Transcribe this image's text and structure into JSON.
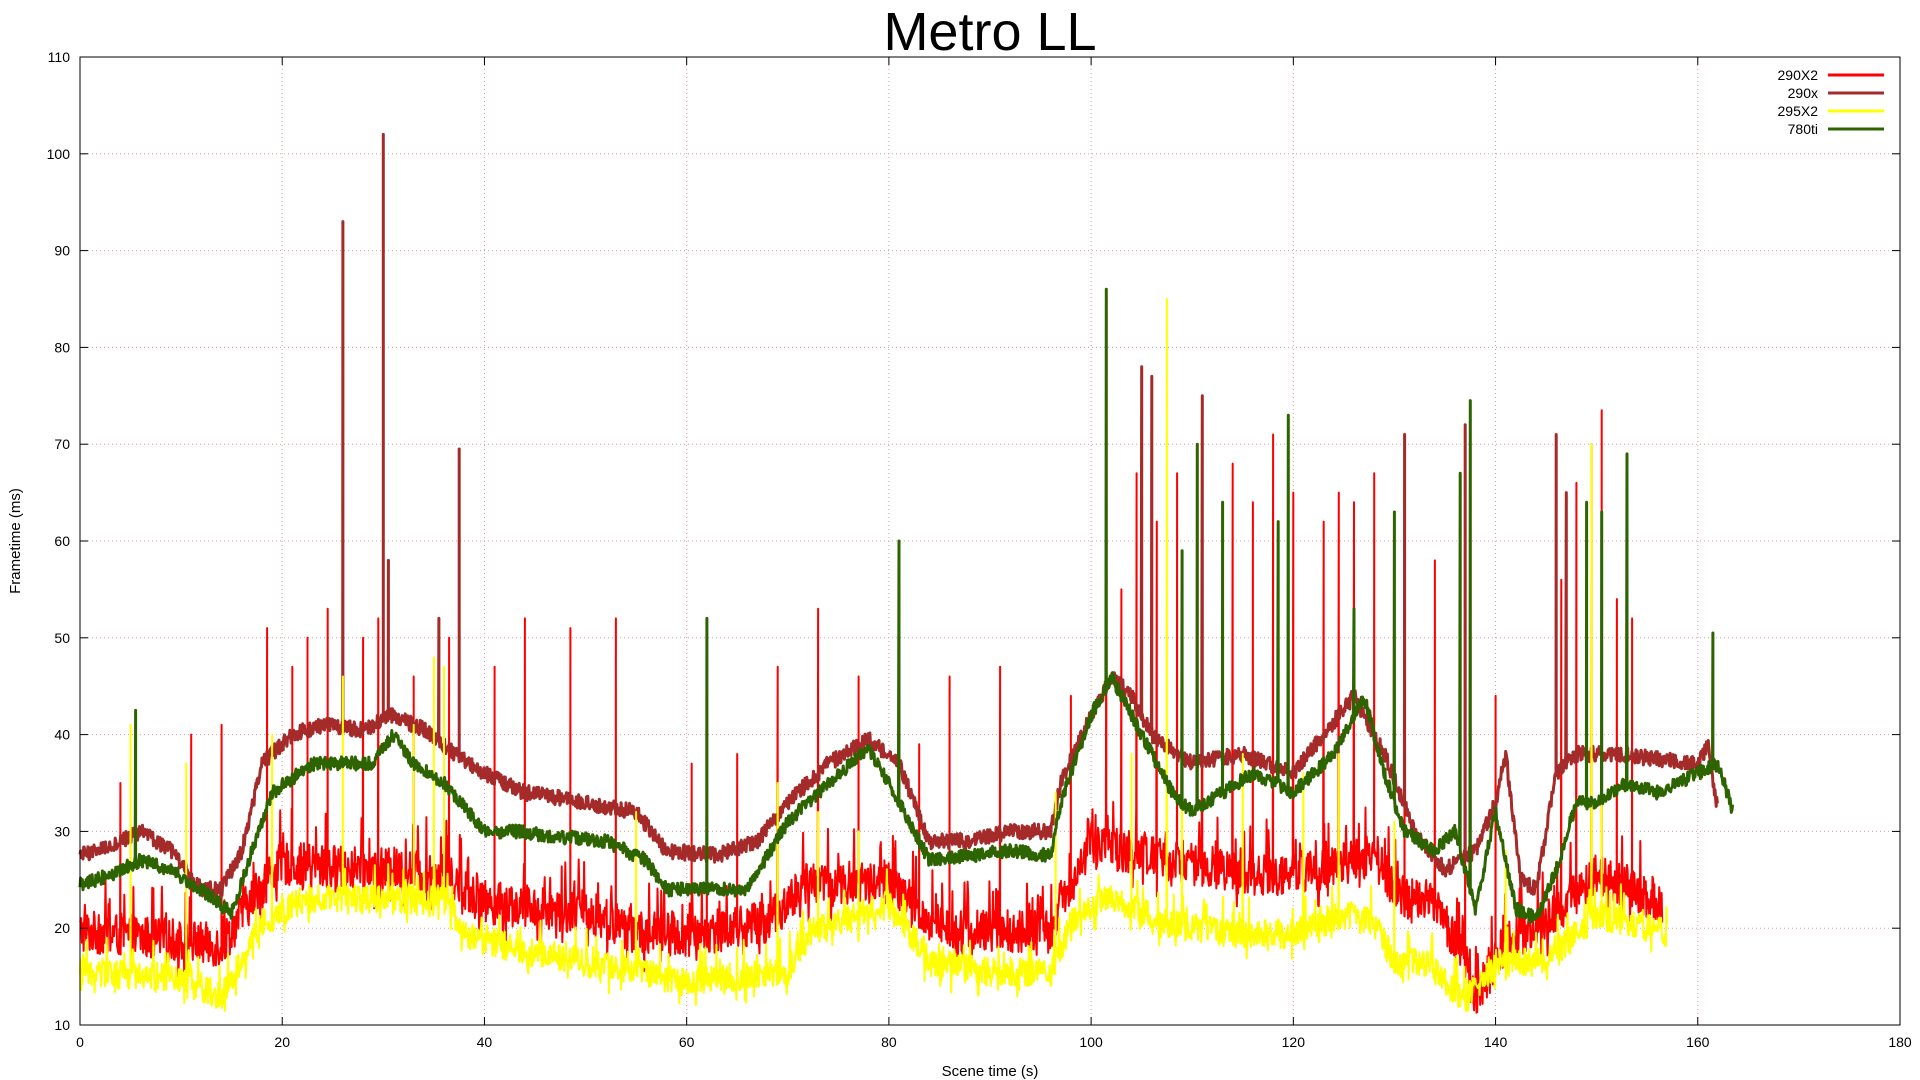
{
  "chart_data": {
    "type": "line",
    "title": "Metro LL",
    "xlabel": "Scene time (s)",
    "ylabel": "Frametime (ms)",
    "xlim": [
      0,
      180
    ],
    "ylim": [
      10,
      110
    ],
    "xticks": [
      0,
      20,
      40,
      60,
      80,
      100,
      120,
      140,
      160,
      180
    ],
    "yticks": [
      10,
      20,
      30,
      40,
      50,
      60,
      70,
      80,
      90,
      100,
      110
    ],
    "grid": true,
    "legend_position": "top-right",
    "series": [
      {
        "name": "290X2",
        "color": "#ff0000",
        "x_range": [
          0,
          156.5
        ],
        "baseline": [
          [
            0,
            19
          ],
          [
            10,
            18
          ],
          [
            14,
            17.5
          ],
          [
            18,
            24
          ],
          [
            20,
            26
          ],
          [
            36,
            25
          ],
          [
            40,
            22
          ],
          [
            50,
            21
          ],
          [
            55,
            19
          ],
          [
            60,
            18.5
          ],
          [
            68,
            20
          ],
          [
            72,
            24
          ],
          [
            80,
            24
          ],
          [
            84,
            20
          ],
          [
            88,
            19
          ],
          [
            96,
            19
          ],
          [
            97,
            22
          ],
          [
            100,
            28
          ],
          [
            105,
            27
          ],
          [
            110,
            26
          ],
          [
            114,
            25
          ],
          [
            120,
            25
          ],
          [
            125,
            26
          ],
          [
            128,
            27
          ],
          [
            130,
            23
          ],
          [
            134,
            22
          ],
          [
            137,
            16
          ],
          [
            138,
            12
          ],
          [
            141,
            18
          ],
          [
            145,
            20
          ],
          [
            150,
            25
          ],
          [
            156.5,
            22
          ]
        ],
        "noise": 4.5,
        "spikes": [
          [
            4,
            35
          ],
          [
            11,
            40
          ],
          [
            14,
            41
          ],
          [
            18.5,
            51
          ],
          [
            21,
            47
          ],
          [
            22.5,
            50
          ],
          [
            24.5,
            53
          ],
          [
            28,
            50
          ],
          [
            29.5,
            52
          ],
          [
            33,
            46
          ],
          [
            36.5,
            50
          ],
          [
            41,
            47
          ],
          [
            44,
            52
          ],
          [
            48.5,
            51
          ],
          [
            53,
            52
          ],
          [
            60.5,
            37
          ],
          [
            62,
            40
          ],
          [
            65,
            38
          ],
          [
            69,
            47
          ],
          [
            73,
            53
          ],
          [
            77,
            46
          ],
          [
            83,
            39
          ],
          [
            86,
            46
          ],
          [
            91,
            47
          ],
          [
            98,
            44
          ],
          [
            101.5,
            61
          ],
          [
            103,
            55
          ],
          [
            104.5,
            67
          ],
          [
            106.5,
            62
          ],
          [
            108.5,
            67
          ],
          [
            111,
            65
          ],
          [
            114,
            68
          ],
          [
            116,
            64
          ],
          [
            118,
            71
          ],
          [
            120,
            65
          ],
          [
            123,
            62
          ],
          [
            124.5,
            65
          ],
          [
            126,
            64
          ],
          [
            128,
            67
          ],
          [
            131,
            63
          ],
          [
            134,
            58
          ],
          [
            137,
            60
          ],
          [
            140,
            44
          ],
          [
            146.5,
            56
          ],
          [
            148,
            66
          ],
          [
            149.5,
            70
          ],
          [
            150.5,
            73.5
          ],
          [
            152,
            54
          ],
          [
            153.5,
            52
          ]
        ]
      },
      {
        "name": "290x",
        "color": "#a52a2a",
        "x_range": [
          0,
          162
        ],
        "baseline": [
          [
            0,
            27.5
          ],
          [
            3,
            28.5
          ],
          [
            6,
            30
          ],
          [
            9,
            28
          ],
          [
            12,
            24
          ],
          [
            14,
            24
          ],
          [
            16,
            28
          ],
          [
            18,
            37
          ],
          [
            21,
            40
          ],
          [
            24,
            41
          ],
          [
            28,
            40.5
          ],
          [
            31,
            42
          ],
          [
            34,
            40.5
          ],
          [
            37,
            38
          ],
          [
            40,
            36
          ],
          [
            44,
            34
          ],
          [
            50,
            33
          ],
          [
            55,
            32
          ],
          [
            58,
            28
          ],
          [
            63,
            27.5
          ],
          [
            67,
            29
          ],
          [
            70,
            33
          ],
          [
            74,
            37
          ],
          [
            78,
            39.5
          ],
          [
            81,
            37
          ],
          [
            84,
            29
          ],
          [
            88,
            29
          ],
          [
            92,
            30
          ],
          [
            96,
            30
          ],
          [
            97,
            35
          ],
          [
            100,
            42
          ],
          [
            102,
            46
          ],
          [
            104,
            44
          ],
          [
            106,
            40
          ],
          [
            110,
            37
          ],
          [
            115,
            38
          ],
          [
            120,
            36
          ],
          [
            123,
            40
          ],
          [
            126,
            44
          ],
          [
            129,
            38
          ],
          [
            132,
            30
          ],
          [
            135,
            26
          ],
          [
            138,
            28
          ],
          [
            140,
            33
          ],
          [
            141,
            38
          ],
          [
            142.5,
            25
          ],
          [
            144,
            24
          ],
          [
            146,
            36
          ],
          [
            148,
            38
          ],
          [
            152,
            38
          ],
          [
            156,
            37.5
          ],
          [
            160,
            37
          ],
          [
            161,
            39
          ],
          [
            162,
            32
          ]
        ],
        "noise": 0.8,
        "spikes": [
          [
            26,
            93
          ],
          [
            30,
            102
          ],
          [
            30.5,
            58
          ],
          [
            37.5,
            69.5
          ],
          [
            35.5,
            52
          ],
          [
            105,
            78
          ],
          [
            106,
            77
          ],
          [
            111,
            75
          ],
          [
            131,
            71
          ],
          [
            137,
            72
          ],
          [
            146,
            71
          ],
          [
            147,
            65
          ]
        ]
      },
      {
        "name": "295X2",
        "color": "#ffff00",
        "x_range": [
          0,
          157
        ],
        "baseline": [
          [
            0,
            15
          ],
          [
            10,
            14.5
          ],
          [
            14,
            12.5
          ],
          [
            18,
            20
          ],
          [
            22,
            22.5
          ],
          [
            36,
            22.5
          ],
          [
            38,
            19
          ],
          [
            45,
            17
          ],
          [
            55,
            15
          ],
          [
            60,
            14
          ],
          [
            70,
            15
          ],
          [
            72,
            19
          ],
          [
            80,
            22
          ],
          [
            84,
            16
          ],
          [
            90,
            15
          ],
          [
            96,
            15
          ],
          [
            98,
            20
          ],
          [
            102,
            23
          ],
          [
            107,
            20
          ],
          [
            114,
            19
          ],
          [
            120,
            19
          ],
          [
            125,
            21
          ],
          [
            128,
            20
          ],
          [
            130,
            16
          ],
          [
            133,
            16
          ],
          [
            137,
            12
          ],
          [
            140,
            16
          ],
          [
            145,
            16
          ],
          [
            150,
            21
          ],
          [
            157,
            19
          ]
        ],
        "noise": 3.0,
        "spikes": [
          [
            5,
            41
          ],
          [
            10.5,
            37
          ],
          [
            19,
            40
          ],
          [
            26,
            46
          ],
          [
            33,
            41
          ],
          [
            35,
            48
          ],
          [
            36,
            47
          ],
          [
            55,
            32
          ],
          [
            69,
            35
          ],
          [
            73,
            32
          ],
          [
            77,
            30
          ],
          [
            96.5,
            34
          ],
          [
            104,
            38
          ],
          [
            107.5,
            85
          ],
          [
            109,
            53
          ],
          [
            115,
            38
          ],
          [
            121,
            36
          ],
          [
            124.5,
            38
          ],
          [
            130,
            31
          ],
          [
            141,
            28
          ],
          [
            149.5,
            70
          ],
          [
            150.5,
            55
          ]
        ]
      },
      {
        "name": "780ti",
        "color": "#2e6400",
        "x_range": [
          0,
          163.5
        ],
        "baseline": [
          [
            0,
            24.5
          ],
          [
            3,
            25.5
          ],
          [
            6,
            27
          ],
          [
            9,
            26
          ],
          [
            12,
            24
          ],
          [
            15,
            21.5
          ],
          [
            17,
            28
          ],
          [
            19,
            34
          ],
          [
            23,
            37
          ],
          [
            26,
            37
          ],
          [
            29,
            37
          ],
          [
            31,
            40
          ],
          [
            33,
            37
          ],
          [
            36,
            35
          ],
          [
            40,
            30
          ],
          [
            43,
            30
          ],
          [
            47,
            29.5
          ],
          [
            52,
            29
          ],
          [
            56,
            27
          ],
          [
            58,
            24
          ],
          [
            62,
            24
          ],
          [
            66,
            24
          ],
          [
            70,
            31
          ],
          [
            74,
            35
          ],
          [
            78,
            38.5
          ],
          [
            80,
            35
          ],
          [
            84,
            27
          ],
          [
            88,
            27.5
          ],
          [
            92,
            28
          ],
          [
            96,
            27.5
          ],
          [
            97,
            33
          ],
          [
            100,
            42
          ],
          [
            102,
            46
          ],
          [
            105,
            40
          ],
          [
            108,
            34
          ],
          [
            110,
            32
          ],
          [
            113,
            34
          ],
          [
            116,
            36
          ],
          [
            120,
            34
          ],
          [
            124,
            38
          ],
          [
            127,
            44
          ],
          [
            129,
            36
          ],
          [
            131,
            30
          ],
          [
            134,
            28
          ],
          [
            136,
            30
          ],
          [
            138,
            22
          ],
          [
            140,
            32
          ],
          [
            142,
            22
          ],
          [
            144,
            21
          ],
          [
            146,
            26
          ],
          [
            148,
            33
          ],
          [
            150,
            33
          ],
          [
            153,
            35
          ],
          [
            156,
            34
          ],
          [
            160,
            36
          ],
          [
            162,
            37
          ],
          [
            163.5,
            32
          ]
        ],
        "noise": 0.7,
        "spikes": [
          [
            5.5,
            42.5
          ],
          [
            62,
            52
          ],
          [
            81,
            60
          ],
          [
            101.5,
            86
          ],
          [
            109,
            59
          ],
          [
            110.5,
            70
          ],
          [
            113,
            64
          ],
          [
            118.5,
            62
          ],
          [
            119.5,
            73
          ],
          [
            126,
            53
          ],
          [
            130,
            63
          ],
          [
            136.5,
            67
          ],
          [
            137.5,
            74.5
          ],
          [
            149,
            64
          ],
          [
            150.5,
            63
          ],
          [
            153,
            69
          ],
          [
            161.5,
            50.5
          ]
        ]
      }
    ]
  }
}
